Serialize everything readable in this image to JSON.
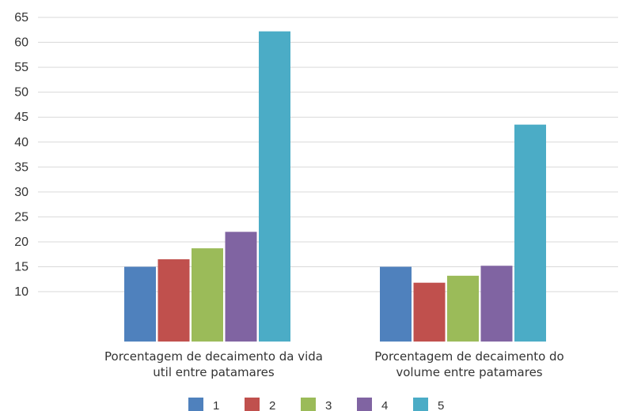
{
  "chart_data": {
    "type": "bar",
    "title": "",
    "xlabel": "",
    "ylabel": "",
    "ylim": [
      0,
      65
    ],
    "yticks": [
      10,
      15,
      20,
      25,
      30,
      35,
      40,
      45,
      50,
      55,
      60,
      65
    ],
    "grid": true,
    "legend_position": "bottom",
    "categories": [
      [
        "Porcentagem de decaimento da vida",
        "util entre patamares"
      ],
      [
        "Porcentagem de decaimento do",
        "volume entre patamares"
      ]
    ],
    "series": [
      {
        "name": "1",
        "color": "#4f81bd",
        "values": [
          15,
          15
        ]
      },
      {
        "name": "2",
        "color": "#c0504d",
        "values": [
          16.5,
          11.8
        ]
      },
      {
        "name": "3",
        "color": "#9bbb59",
        "values": [
          18.7,
          13.2
        ]
      },
      {
        "name": "4",
        "color": "#8064a2",
        "values": [
          22,
          15.2
        ]
      },
      {
        "name": "5",
        "color": "#4bacc6",
        "values": [
          62.2,
          43.5
        ]
      }
    ]
  }
}
